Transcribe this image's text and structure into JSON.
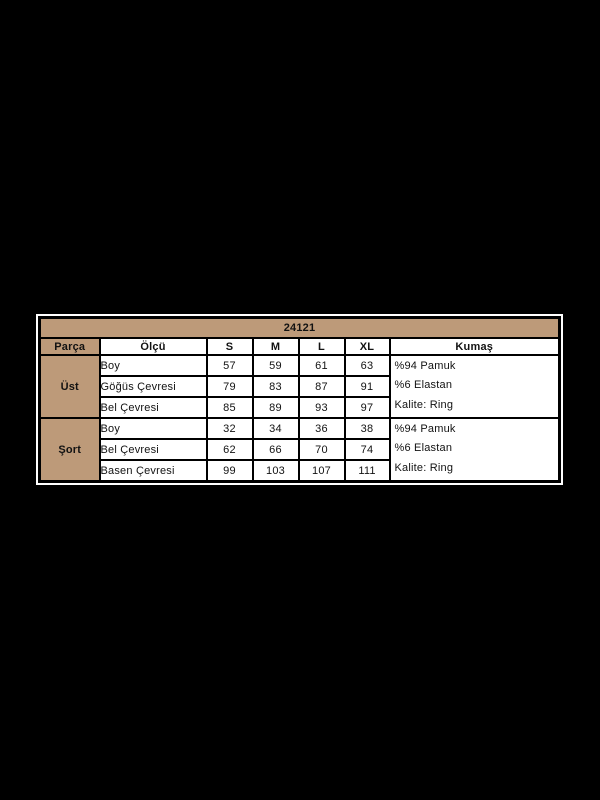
{
  "page": {
    "background_color": "#000000",
    "panel_color": "#ffffff",
    "accent_color": "#bd9a79"
  },
  "size_chart": {
    "title": "24121",
    "columns": [
      "Parça",
      "Ölçü",
      "S",
      "M",
      "L",
      "XL",
      "Kumaş"
    ],
    "sections": [
      {
        "part": "Üst",
        "rows": [
          {
            "measure": "Boy",
            "values": [
              "57",
              "59",
              "61",
              "63"
            ]
          },
          {
            "measure": "Göğüs Çevresi",
            "values": [
              "79",
              "83",
              "87",
              "91"
            ]
          },
          {
            "measure": "Bel Çevresi",
            "values": [
              "85",
              "89",
              "93",
              "97"
            ]
          }
        ],
        "fabric": [
          "%94 Pamuk",
          "%6 Elastan",
          "Kalite: Ring"
        ]
      },
      {
        "part": "Şort",
        "rows": [
          {
            "measure": "Boy",
            "values": [
              "32",
              "34",
              "36",
              "38"
            ]
          },
          {
            "measure": "Bel Çevresi",
            "values": [
              "62",
              "66",
              "70",
              "74"
            ]
          },
          {
            "measure": "Basen Çevresi",
            "values": [
              "99",
              "103",
              "107",
              "111"
            ]
          }
        ],
        "fabric": [
          "%94 Pamuk",
          "%6 Elastan",
          "Kalite: Ring"
        ]
      }
    ]
  },
  "chart_data": {
    "type": "table",
    "title": "24121",
    "columns": [
      "Parça",
      "Ölçü",
      "S",
      "M",
      "L",
      "XL",
      "Kumaş"
    ],
    "rows": [
      [
        "Üst",
        "Boy",
        57,
        59,
        61,
        63,
        "%94 Pamuk"
      ],
      [
        "Üst",
        "Göğüs Çevresi",
        79,
        83,
        87,
        91,
        "%6 Elastan"
      ],
      [
        "Üst",
        "Bel Çevresi",
        85,
        89,
        93,
        97,
        "Kalite: Ring"
      ],
      [
        "Şort",
        "Boy",
        32,
        34,
        36,
        38,
        "%94 Pamuk"
      ],
      [
        "Şort",
        "Bel Çevresi",
        62,
        66,
        70,
        74,
        "%6 Elastan"
      ],
      [
        "Şort",
        "Basen Çevresi",
        99,
        103,
        107,
        111,
        "Kalite: Ring"
      ]
    ],
    "notes": "Size chart table; first column cells (part) and title bar have tan background #bd9a79; part and fabric cells are merged across each 3-row section."
  }
}
